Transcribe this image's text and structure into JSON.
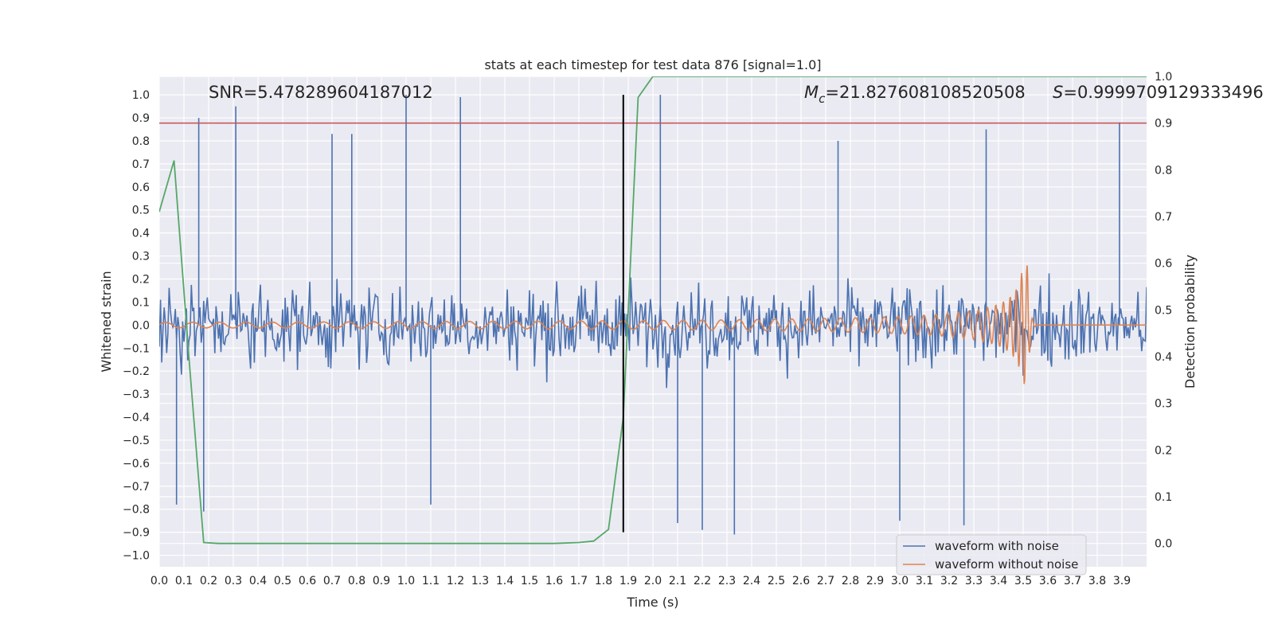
{
  "chart_data": {
    "type": "line",
    "title": "stats at each timestep for test data 876 [signal=1.0]",
    "xlabel": "Time (s)",
    "ylabel": "Whitened strain",
    "y2label": "Detection probability",
    "xlim": [
      0.0,
      4.0
    ],
    "ylim": [
      -1.05,
      1.08
    ],
    "y2lim": [
      -0.05,
      1.0
    ],
    "x_ticks": [
      0.0,
      0.1,
      0.2,
      0.3,
      0.4,
      0.5,
      0.6,
      0.7,
      0.8,
      0.9,
      1.0,
      1.1,
      1.2,
      1.3,
      1.4,
      1.5,
      1.6,
      1.7,
      1.8,
      1.9,
      2.0,
      2.1,
      2.2,
      2.3,
      2.4,
      2.5,
      2.6,
      2.7,
      2.8,
      2.9,
      3.0,
      3.1,
      3.2,
      3.3,
      3.4,
      3.5,
      3.6,
      3.7,
      3.8,
      3.9
    ],
    "x_tick_labels": [
      "0.0",
      "0.1",
      "0.2",
      "0.3",
      "0.4",
      "0.5",
      "0.6",
      "0.7",
      "0.8",
      "0.9",
      "1.0",
      "1.1",
      "1.2",
      "1.3",
      "1.4",
      "1.5",
      "1.6",
      "1.7",
      "1.8",
      "1.9",
      "2.0",
      "2.1",
      "2.2",
      "2.3",
      "2.4",
      "2.5",
      "2.6",
      "2.7",
      "2.8",
      "2.9",
      "3.0",
      "3.1",
      "3.2",
      "3.3",
      "3.4",
      "3.5",
      "3.6",
      "3.7",
      "3.8",
      "3.9"
    ],
    "y_ticks": [
      1.0,
      0.9,
      0.8,
      0.7,
      0.6,
      0.5,
      0.4,
      0.3,
      0.2,
      0.1,
      0.0,
      -0.1,
      -0.2,
      -0.3,
      -0.4,
      -0.5,
      -0.6,
      -0.7,
      -0.8,
      -0.9,
      -1.0
    ],
    "y_tick_labels": [
      "1.0",
      "0.9",
      "0.8",
      "0.7",
      "0.6",
      "0.5",
      "0.4",
      "0.3",
      "0.2",
      "0.1",
      "0.0",
      "−0.1",
      "−0.2",
      "−0.3",
      "−0.4",
      "−0.5",
      "−0.6",
      "−0.7",
      "−0.8",
      "−0.9",
      "−1.0"
    ],
    "y2_ticks": [
      1.0,
      0.9,
      0.8,
      0.7,
      0.6,
      0.5,
      0.4,
      0.3,
      0.2,
      0.1,
      0.0
    ],
    "y2_tick_labels": [
      "1.0",
      "0.9",
      "0.8",
      "0.7",
      "0.6",
      "0.5",
      "0.4",
      "0.3",
      "0.2",
      "0.1",
      "0.0"
    ],
    "grid": true,
    "legend_position": "bottom-right",
    "threshold_line": {
      "axis": "y2",
      "value": 0.9,
      "color": "#c44e52"
    },
    "marker_line": {
      "x": 1.88,
      "color": "#000000"
    },
    "annotations": {
      "snr": "SNR=5.478289604187012",
      "mc_symbol": "M",
      "mc_subscript": "c",
      "mc_value": "=21.827608108520508",
      "s_symbol": "S",
      "s_value": "=0.9999709129333496"
    },
    "series": [
      {
        "name": "waveform with noise",
        "color": "#4c72b0",
        "axis": "y",
        "description_note": "dense noisy strain, sampled every 0.005 s",
        "values_seed": 876,
        "dt": 0.005,
        "spikes": [
          [
            0.16,
            0.9
          ],
          [
            0.31,
            0.95
          ],
          [
            0.7,
            0.83
          ],
          [
            0.78,
            0.83
          ],
          [
            1.0,
            1.0
          ],
          [
            1.22,
            0.99
          ],
          [
            2.03,
            1.0
          ],
          [
            2.75,
            0.8
          ],
          [
            3.35,
            0.85
          ],
          [
            3.89,
            0.88
          ],
          [
            0.07,
            -0.78
          ],
          [
            0.18,
            -0.81
          ],
          [
            1.1,
            -0.78
          ],
          [
            2.2,
            -0.89
          ],
          [
            2.33,
            -0.91
          ],
          [
            3.0,
            -0.85
          ],
          [
            3.26,
            -0.87
          ],
          [
            2.1,
            -0.86
          ]
        ]
      },
      {
        "name": "waveform without noise",
        "color": "#dd8452",
        "axis": "y",
        "merger_time": 3.52,
        "start_amplitude": 0.012,
        "peak_amplitude": 0.26,
        "start_frequency_hz": 9,
        "peak_frequency_hz": 45
      },
      {
        "name": "detection probability",
        "color": "#55a868",
        "axis": "y2",
        "x": [
          0.0,
          0.06,
          0.12,
          0.18,
          0.24,
          0.3,
          0.5,
          0.8,
          1.0,
          1.2,
          1.4,
          1.6,
          1.7,
          1.76,
          1.82,
          1.88,
          1.94,
          2.0,
          2.1,
          2.5,
          3.0,
          3.5,
          3.9,
          4.0
        ],
        "values": [
          0.71,
          0.82,
          0.4,
          0.002,
          0.0,
          0.0,
          0.0,
          0.0,
          0.0,
          0.0,
          0.0,
          0.0,
          0.002,
          0.005,
          0.03,
          0.27,
          0.955,
          1.0,
          1.0,
          1.0,
          1.0,
          1.0,
          1.0,
          1.0
        ]
      }
    ]
  }
}
